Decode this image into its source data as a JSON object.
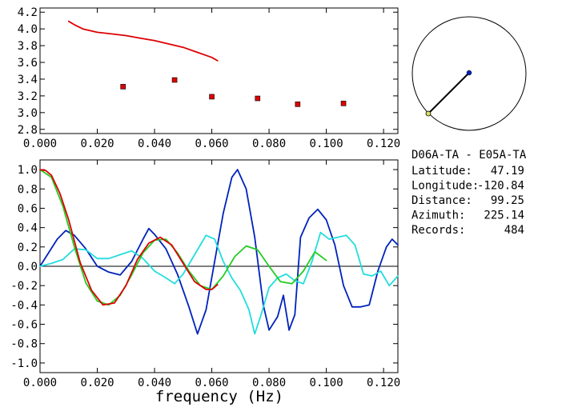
{
  "station_pair": "D06A-TA - E05A-TA",
  "info": [
    {
      "label": "Latitude:",
      "value": "47.19"
    },
    {
      "label": "Longitude:",
      "value": "-120.84"
    },
    {
      "label": "Distance:",
      "value": "99.25"
    },
    {
      "label": "Azimuth:",
      "value": "225.14"
    },
    {
      "label": "Records:",
      "value": "484"
    }
  ],
  "colors": {
    "red": "#dd0000",
    "blue": "#0022bb",
    "green": "#22cc22",
    "cyan": "#22dddd",
    "black": "#000000"
  },
  "chart_data": [
    {
      "type": "line",
      "title": "",
      "xlabel": "",
      "ylabel": "",
      "xlim": [
        0.0,
        0.125
      ],
      "ylim": [
        2.75,
        4.25
      ],
      "xticks": [
        "0.000",
        "0.020",
        "0.040",
        "0.060",
        "0.080",
        "0.100",
        "0.120"
      ],
      "yticks": [
        "2.8",
        "3.0",
        "3.2",
        "3.4",
        "3.6",
        "3.8",
        "4.0",
        "4.2"
      ],
      "series": [
        {
          "style": "line",
          "color": "red",
          "x": [
            0.01,
            0.012,
            0.015,
            0.02,
            0.025,
            0.03,
            0.035,
            0.04,
            0.045,
            0.05,
            0.055,
            0.06,
            0.062
          ],
          "y": [
            4.09,
            4.05,
            4.0,
            3.96,
            3.94,
            3.92,
            3.89,
            3.86,
            3.82,
            3.78,
            3.72,
            3.66,
            3.62
          ]
        },
        {
          "style": "scatter",
          "color": "red",
          "x": [
            0.029,
            0.047,
            0.06,
            0.076,
            0.09,
            0.106
          ],
          "y": [
            3.31,
            3.39,
            3.19,
            3.17,
            3.1,
            3.11
          ]
        }
      ]
    },
    {
      "type": "line",
      "title": "",
      "xlabel": "frequency (Hz)",
      "ylabel": "",
      "xlim": [
        0.0,
        0.125
      ],
      "ylim": [
        -1.1,
        1.1
      ],
      "zero_line": true,
      "xticks": [
        "0.000",
        "0.020",
        "0.040",
        "0.060",
        "0.080",
        "0.100",
        "0.120"
      ],
      "yticks": [
        "1.0",
        "0.8",
        "0.6",
        "0.4",
        "0.2",
        "0.0",
        "-0.2",
        "-0.4",
        "-0.6",
        "-0.8",
        "-1.0"
      ],
      "series": [
        {
          "color": "blue",
          "x": [
            0.0,
            0.003,
            0.006,
            0.009,
            0.012,
            0.016,
            0.02,
            0.024,
            0.028,
            0.032,
            0.036,
            0.038,
            0.04,
            0.044,
            0.048,
            0.052,
            0.055,
            0.058,
            0.061,
            0.064,
            0.067,
            0.069,
            0.072,
            0.075,
            0.078,
            0.08,
            0.083,
            0.085,
            0.087,
            0.089,
            0.091,
            0.094,
            0.097,
            0.1,
            0.103,
            0.106,
            0.109,
            0.112,
            0.115,
            0.118,
            0.121,
            0.123,
            0.125
          ],
          "y": [
            0.0,
            0.14,
            0.28,
            0.37,
            0.32,
            0.18,
            0.0,
            -0.06,
            -0.09,
            0.05,
            0.28,
            0.39,
            0.33,
            0.18,
            -0.08,
            -0.42,
            -0.7,
            -0.45,
            0.05,
            0.55,
            0.92,
            1.0,
            0.8,
            0.3,
            -0.4,
            -0.66,
            -0.52,
            -0.3,
            -0.66,
            -0.5,
            0.3,
            0.5,
            0.59,
            0.48,
            0.22,
            -0.2,
            -0.42,
            -0.42,
            -0.4,
            -0.05,
            0.2,
            0.28,
            0.22
          ]
        },
        {
          "color": "cyan",
          "x": [
            0.0,
            0.004,
            0.008,
            0.012,
            0.016,
            0.02,
            0.024,
            0.028,
            0.032,
            0.036,
            0.04,
            0.044,
            0.047,
            0.05,
            0.054,
            0.058,
            0.061,
            0.064,
            0.067,
            0.07,
            0.073,
            0.075,
            0.077,
            0.08,
            0.083,
            0.086,
            0.089,
            0.092,
            0.095,
            0.098,
            0.101,
            0.104,
            0.107,
            0.11,
            0.113,
            0.116,
            0.119,
            0.122,
            0.125
          ],
          "y": [
            0.0,
            0.03,
            0.07,
            0.18,
            0.17,
            0.08,
            0.08,
            0.12,
            0.16,
            0.08,
            -0.05,
            -0.12,
            -0.18,
            -0.08,
            0.12,
            0.32,
            0.28,
            0.05,
            -0.12,
            -0.25,
            -0.45,
            -0.7,
            -0.52,
            -0.22,
            -0.12,
            -0.08,
            -0.15,
            -0.18,
            0.05,
            0.35,
            0.28,
            0.3,
            0.32,
            0.22,
            -0.08,
            -0.1,
            -0.05,
            -0.2,
            -0.1
          ]
        },
        {
          "color": "green",
          "x": [
            0.0,
            0.004,
            0.008,
            0.012,
            0.016,
            0.02,
            0.024,
            0.028,
            0.032,
            0.036,
            0.04,
            0.044,
            0.048,
            0.052,
            0.056,
            0.06,
            0.064,
            0.068,
            0.072,
            0.076,
            0.08,
            0.084,
            0.088,
            0.092,
            0.096,
            0.1
          ],
          "y": [
            1.0,
            0.92,
            0.62,
            0.2,
            -0.17,
            -0.36,
            -0.4,
            -0.3,
            -0.09,
            0.14,
            0.27,
            0.28,
            0.14,
            -0.05,
            -0.2,
            -0.24,
            -0.1,
            0.1,
            0.21,
            0.17,
            0.0,
            -0.16,
            -0.18,
            -0.05,
            0.15,
            0.06
          ]
        },
        {
          "color": "red",
          "x": [
            0.0,
            0.002,
            0.004,
            0.007,
            0.01,
            0.014,
            0.018,
            0.022,
            0.026,
            0.03,
            0.034,
            0.038,
            0.042,
            0.046,
            0.05,
            0.054,
            0.058,
            0.06,
            0.062
          ],
          "y": [
            1.0,
            0.99,
            0.94,
            0.75,
            0.48,
            0.04,
            -0.25,
            -0.4,
            -0.38,
            -0.2,
            0.07,
            0.24,
            0.3,
            0.22,
            0.03,
            -0.16,
            -0.24,
            -0.24,
            -0.19
          ]
        }
      ]
    }
  ]
}
